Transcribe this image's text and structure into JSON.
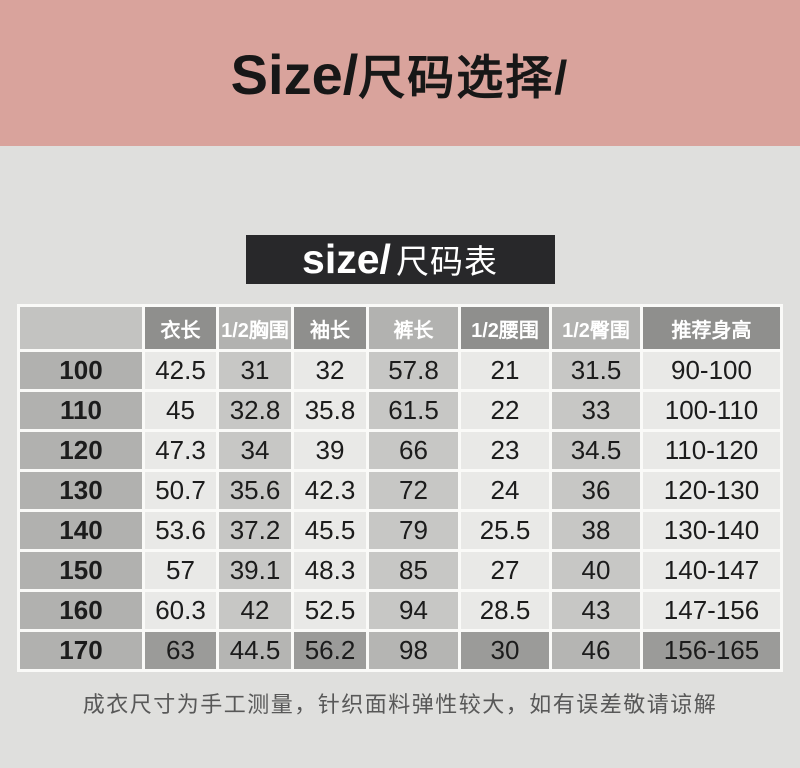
{
  "colors": {
    "banner-pink": "#d9a39c",
    "page-bg": "#dfdfdd",
    "box-black": "#28282a",
    "header-dark": "#8f8f8d",
    "header-light": "#b2b2b0",
    "corner": "#c3c3c1",
    "row-label": "#b1b1af",
    "cell-light": "#e9e9e7",
    "cell-gray": "#c7c7c5",
    "cell-dark": "#9b9b99",
    "cell-mid": "#b5b5b3"
  },
  "banner": {
    "title_en": "Size/",
    "title_zh": "尺码选择/"
  },
  "section_header": {
    "label_en": "size/",
    "label_zh": "尺码表"
  },
  "chart_data": {
    "type": "table",
    "title": "size/尺码表",
    "columns": [
      "",
      "衣长",
      "1/2胸围",
      "袖长",
      "裤长",
      "1/2腰围",
      "1/2臀围",
      "推荐身高"
    ],
    "rows": [
      {
        "size": "100",
        "values": [
          "42.5",
          "31",
          "32",
          "57.8",
          "21",
          "31.5",
          "90-100"
        ]
      },
      {
        "size": "110",
        "values": [
          "45",
          "32.8",
          "35.8",
          "61.5",
          "22",
          "33",
          "100-110"
        ]
      },
      {
        "size": "120",
        "values": [
          "47.3",
          "34",
          "39",
          "66",
          "23",
          "34.5",
          "110-120"
        ]
      },
      {
        "size": "130",
        "values": [
          "50.7",
          "35.6",
          "42.3",
          "72",
          "24",
          "36",
          "120-130"
        ]
      },
      {
        "size": "140",
        "values": [
          "53.6",
          "37.2",
          "45.5",
          "79",
          "25.5",
          "38",
          "130-140"
        ]
      },
      {
        "size": "150",
        "values": [
          "57",
          "39.1",
          "48.3",
          "85",
          "27",
          "40",
          "140-147"
        ]
      },
      {
        "size": "160",
        "values": [
          "60.3",
          "42",
          "52.5",
          "94",
          "28.5",
          "43",
          "147-156"
        ]
      },
      {
        "size": "170",
        "values": [
          "63",
          "44.5",
          "56.2",
          "98",
          "30",
          "46",
          "156-165"
        ]
      }
    ],
    "highlight_row": "170"
  },
  "footnote": "成衣尺寸为手工测量，针织面料弹性较大，如有误差敬请谅解"
}
